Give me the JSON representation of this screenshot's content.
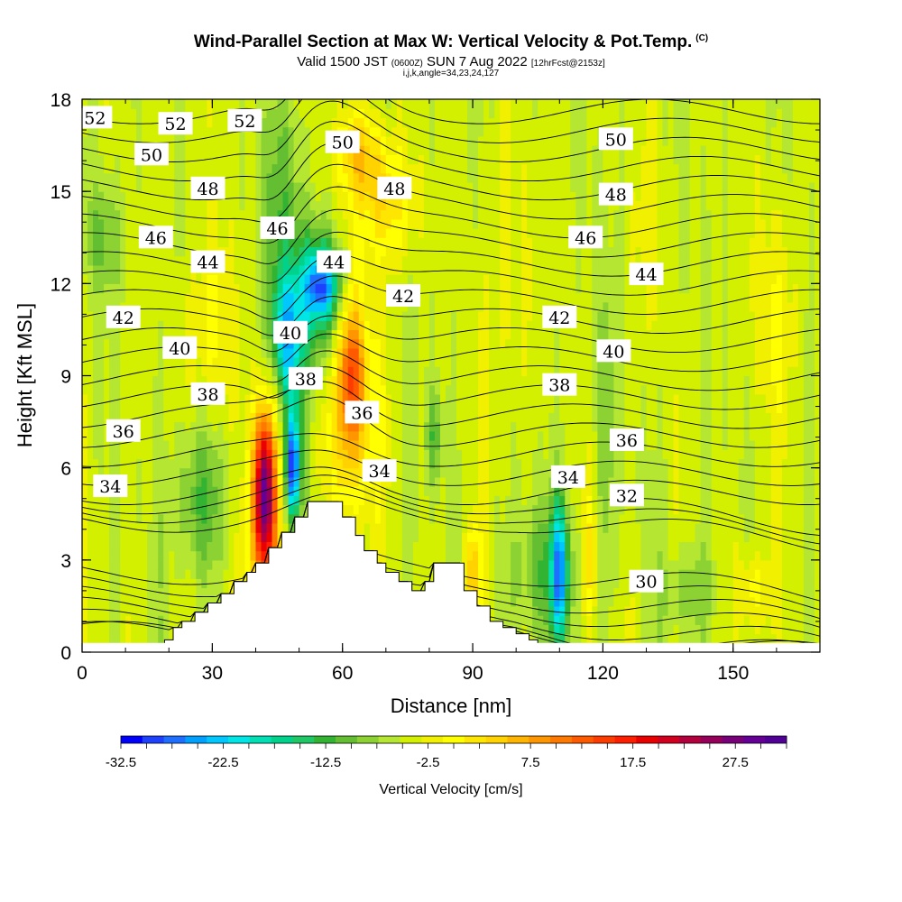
{
  "header": {
    "title": "Wind-Parallel Section at Max W: Vertical Velocity & Pot.Temp.",
    "copyright": "(C)",
    "valid_prefix": "Valid 1500 JST",
    "valid_utc": "(0600Z)",
    "valid_date": "SUN 7 Aug 2022",
    "forecast": "[12hrFcst@2153z]",
    "indices": "i,j,k,angle=34,23,24,127"
  },
  "chart_data": {
    "type": "heatmap",
    "title": "Wind-Parallel Section at Max W: Vertical Velocity & Pot.Temp.",
    "xlabel": "Distance [nm]",
    "ylabel": "Height [Kft MSL]",
    "xlim": [
      0,
      170
    ],
    "ylim": [
      0,
      18
    ],
    "x_ticks": [
      "0",
      "30",
      "60",
      "90",
      "120",
      "150"
    ],
    "y_ticks": [
      "0",
      "3",
      "6",
      "9",
      "12",
      "15",
      "18"
    ],
    "colorbar": {
      "title": "Vertical Velocity [cm/s]",
      "min": -32.5,
      "max": 32.5,
      "step": 2.5,
      "tick_labels": [
        "-32.5",
        "-22.5",
        "-12.5",
        "-2.5",
        "7.5",
        "17.5",
        "27.5"
      ],
      "colors": [
        "#0000ff",
        "#1e40ff",
        "#1e6eff",
        "#00a0ff",
        "#00c8ff",
        "#00e6e6",
        "#00e0b4",
        "#00d28c",
        "#1ec864",
        "#32b432",
        "#64be32",
        "#8cd232",
        "#b4e632",
        "#d2f000",
        "#f0f000",
        "#ffff00",
        "#ffe600",
        "#ffd200",
        "#ffb400",
        "#ff9600",
        "#ff7800",
        "#ff5a00",
        "#ff3c00",
        "#ff1e00",
        "#eb0000",
        "#d2001e",
        "#b4003c",
        "#96005a",
        "#780078",
        "#640096",
        "#500096"
      ],
      "contour_levels": [
        -32.5,
        -30,
        -27.5,
        -25,
        -22.5,
        -20,
        -17.5,
        -15,
        -12.5,
        -10,
        -7.5,
        -5,
        -2.5,
        0,
        2.5,
        5,
        7.5,
        10,
        12.5,
        15,
        17.5,
        20,
        22.5,
        25,
        27.5,
        30,
        32.5
      ]
    },
    "theta_contours": {
      "name": "Pot.Temp.",
      "labels": [
        {
          "text": "52",
          "x": 3,
          "y": 17.4
        },
        {
          "text": "52",
          "x": 21.5,
          "y": 17.2
        },
        {
          "text": "52",
          "x": 37.5,
          "y": 17.3
        },
        {
          "text": "50",
          "x": 16,
          "y": 16.2
        },
        {
          "text": "50",
          "x": 60,
          "y": 16.6
        },
        {
          "text": "50",
          "x": 123,
          "y": 16.7
        },
        {
          "text": "48",
          "x": 29,
          "y": 15.1
        },
        {
          "text": "48",
          "x": 72,
          "y": 15.1
        },
        {
          "text": "48",
          "x": 123,
          "y": 14.9
        },
        {
          "text": "46",
          "x": 17,
          "y": 13.5
        },
        {
          "text": "46",
          "x": 45,
          "y": 13.8
        },
        {
          "text": "46",
          "x": 116,
          "y": 13.5
        },
        {
          "text": "44",
          "x": 29,
          "y": 12.7
        },
        {
          "text": "44",
          "x": 58,
          "y": 12.7
        },
        {
          "text": "44",
          "x": 130,
          "y": 12.3
        },
        {
          "text": "42",
          "x": 9.5,
          "y": 10.9
        },
        {
          "text": "42",
          "x": 74,
          "y": 11.6
        },
        {
          "text": "42",
          "x": 110,
          "y": 10.9
        },
        {
          "text": "40",
          "x": 22.5,
          "y": 9.9
        },
        {
          "text": "40",
          "x": 48,
          "y": 10.4
        },
        {
          "text": "40",
          "x": 122.5,
          "y": 9.8
        },
        {
          "text": "38",
          "x": 29,
          "y": 8.4
        },
        {
          "text": "38",
          "x": 51.5,
          "y": 8.9
        },
        {
          "text": "38",
          "x": 110,
          "y": 8.7
        },
        {
          "text": "36",
          "x": 9.5,
          "y": 7.2
        },
        {
          "text": "36",
          "x": 64.5,
          "y": 7.8
        },
        {
          "text": "36",
          "x": 125.5,
          "y": 6.9
        },
        {
          "text": "34",
          "x": 6.5,
          "y": 5.4
        },
        {
          "text": "34",
          "x": 68.5,
          "y": 5.9
        },
        {
          "text": "34",
          "x": 112,
          "y": 5.7
        },
        {
          "text": "32",
          "x": 125.5,
          "y": 5.1
        },
        {
          "text": "30",
          "x": 130,
          "y": 2.3
        }
      ]
    },
    "terrain": {
      "x": [
        19,
        21,
        23,
        26,
        29,
        32,
        35,
        38,
        40,
        43,
        46,
        49,
        52,
        57,
        60,
        63,
        65,
        68,
        70,
        73,
        76,
        79,
        81,
        86,
        88,
        91,
        94,
        97,
        100,
        103,
        105
      ],
      "height": [
        0.4,
        0.8,
        1.0,
        1.3,
        1.6,
        1.9,
        2.3,
        2.6,
        2.9,
        3.4,
        3.9,
        4.4,
        4.9,
        4.9,
        4.4,
        3.8,
        3.3,
        2.9,
        2.6,
        2.3,
        2.0,
        2.3,
        2.9,
        2.9,
        2.0,
        1.5,
        1.0,
        0.8,
        0.6,
        0.4,
        0.0
      ]
    },
    "blobs": [
      {
        "x": 42,
        "y": 5.2,
        "rx": 2.2,
        "ry": 2.4,
        "w": 30
      },
      {
        "x": 42,
        "y": 4.0,
        "rx": 4.5,
        "ry": 4.0,
        "w": 14
      },
      {
        "x": 48.5,
        "y": 6.0,
        "rx": 1.4,
        "ry": 1.6,
        "w": -25
      },
      {
        "x": 48.5,
        "y": 6.5,
        "rx": 2.8,
        "ry": 3.2,
        "w": -10
      },
      {
        "x": 47,
        "y": 10.3,
        "rx": 3.5,
        "ry": 2.0,
        "w": -18
      },
      {
        "x": 55,
        "y": 11.5,
        "rx": 10.0,
        "ry": 2.5,
        "w": -11
      },
      {
        "x": 55,
        "y": 12.0,
        "rx": 4.0,
        "ry": 1.2,
        "w": -20
      },
      {
        "x": 62,
        "y": 9.3,
        "rx": 2.8,
        "ry": 2.8,
        "w": 16
      },
      {
        "x": 62,
        "y": 8.5,
        "rx": 7.0,
        "ry": 4.5,
        "w": 10
      },
      {
        "x": 64,
        "y": 16.2,
        "rx": 5.5,
        "ry": 1.5,
        "w": 10
      },
      {
        "x": 70,
        "y": 14.5,
        "rx": 6.0,
        "ry": 2.0,
        "w": 9
      },
      {
        "x": 30,
        "y": 10.5,
        "rx": 5.0,
        "ry": 3.5,
        "w": 6
      },
      {
        "x": 27,
        "y": 5.0,
        "rx": 6.0,
        "ry": 2.5,
        "w": -8
      },
      {
        "x": 45,
        "y": 15.0,
        "rx": 5.0,
        "ry": 3.0,
        "w": -6
      },
      {
        "x": 110,
        "y": 2.6,
        "rx": 1.8,
        "ry": 2.2,
        "w": -20
      },
      {
        "x": 107,
        "y": 2.6,
        "rx": 7.0,
        "ry": 2.3,
        "w": -8
      },
      {
        "x": 90,
        "y": 2.5,
        "rx": 1.8,
        "ry": 1.6,
        "w": 12
      },
      {
        "x": 81,
        "y": 7.0,
        "rx": 1.8,
        "ry": 1.6,
        "w": -8
      },
      {
        "x": 117,
        "y": 3.0,
        "rx": 1.6,
        "ry": 2.0,
        "w": 8
      },
      {
        "x": 5,
        "y": 13.5,
        "rx": 4.0,
        "ry": 1.8,
        "w": -6
      },
      {
        "x": 121,
        "y": 7.5,
        "rx": 2.0,
        "ry": 5.0,
        "w": -4
      },
      {
        "x": 155,
        "y": 2.0,
        "rx": 4.0,
        "ry": 1.5,
        "w": 7
      },
      {
        "x": 140,
        "y": 2.0,
        "rx": 6.0,
        "ry": 1.5,
        "w": -5
      },
      {
        "x": 160,
        "y": 11.0,
        "rx": 6.0,
        "ry": 4.0,
        "w": 4
      },
      {
        "x": 98,
        "y": 12.0,
        "rx": 6.0,
        "ry": 5.0,
        "w": 3
      },
      {
        "x": 130,
        "y": 14.0,
        "rx": 3.0,
        "ry": 4.0,
        "w": 3
      }
    ]
  }
}
